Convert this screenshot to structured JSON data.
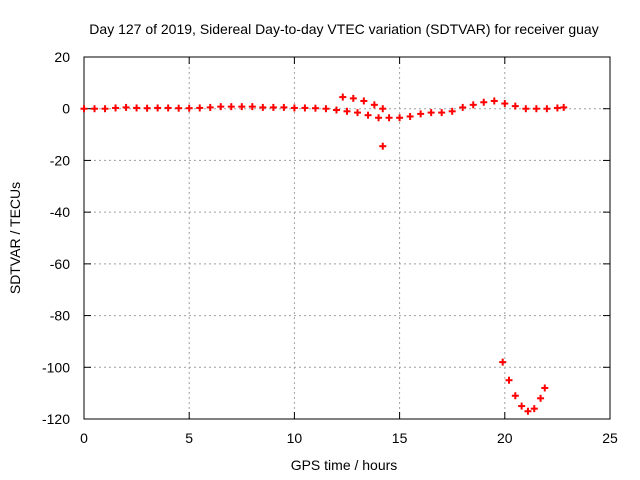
{
  "chart_data": {
    "type": "scatter",
    "title": "Day 127 of 2019, Sidereal Day-to-day VTEC variation (SDTVAR) for receiver guay",
    "xlabel": "GPS time / hours",
    "ylabel": "SDTVAR / TECUs",
    "xlim": [
      0,
      25
    ],
    "ylim": [
      -120,
      20
    ],
    "xticks": [
      0,
      5,
      10,
      15,
      20,
      25
    ],
    "yticks": [
      20,
      0,
      -20,
      -40,
      -60,
      -80,
      -100,
      -120
    ],
    "xtick_labels": [
      "0",
      "5",
      "10",
      "15",
      "20",
      "25"
    ],
    "ytick_labels": [
      "20",
      "0",
      "-20",
      "-40",
      "-60",
      "-80",
      "-100",
      "-120"
    ],
    "grid": true,
    "marker": "+",
    "color": "#ff0000",
    "series": [
      {
        "name": "SDTVAR",
        "points": [
          [
            0,
            0
          ],
          [
            0.5,
            0
          ],
          [
            1,
            0
          ],
          [
            1.5,
            0.3
          ],
          [
            2,
            0.5
          ],
          [
            2.5,
            0.3
          ],
          [
            3,
            0.2
          ],
          [
            3.5,
            0.3
          ],
          [
            4,
            0.3
          ],
          [
            4.5,
            0.2
          ],
          [
            5,
            0.2
          ],
          [
            5.5,
            0.3
          ],
          [
            6,
            0.5
          ],
          [
            6.5,
            0.8
          ],
          [
            7,
            0.8
          ],
          [
            7.5,
            0.8
          ],
          [
            8,
            0.8
          ],
          [
            8.5,
            0.5
          ],
          [
            9,
            0.5
          ],
          [
            9.5,
            0.5
          ],
          [
            10,
            0.3
          ],
          [
            10.5,
            0.3
          ],
          [
            11,
            0.2
          ],
          [
            11.5,
            0
          ],
          [
            12,
            -0.5
          ],
          [
            12.5,
            -1
          ],
          [
            13,
            -1.5
          ],
          [
            13.5,
            -2.5
          ],
          [
            14,
            -3.5
          ],
          [
            12.3,
            4.5
          ],
          [
            12.8,
            4
          ],
          [
            13.3,
            3
          ],
          [
            13.8,
            1.5
          ],
          [
            14.2,
            0
          ],
          [
            14.2,
            -14.5
          ],
          [
            14.5,
            -3.5
          ],
          [
            15,
            -3.5
          ],
          [
            15.5,
            -3
          ],
          [
            16,
            -2
          ],
          [
            16.5,
            -1.5
          ],
          [
            17,
            -1.5
          ],
          [
            17.5,
            -1
          ],
          [
            18,
            0.5
          ],
          [
            18.5,
            1.5
          ],
          [
            19,
            2.5
          ],
          [
            19.5,
            3
          ],
          [
            20,
            2
          ],
          [
            20.5,
            1
          ],
          [
            21,
            0
          ],
          [
            21.5,
            0
          ],
          [
            22,
            0
          ],
          [
            22.5,
            0.3
          ],
          [
            22.8,
            0.5
          ],
          [
            19.9,
            -98
          ],
          [
            20.2,
            -105
          ],
          [
            20.5,
            -111
          ],
          [
            20.8,
            -115
          ],
          [
            21.1,
            -117
          ],
          [
            21.4,
            -116
          ],
          [
            21.7,
            -112
          ],
          [
            21.9,
            -108
          ]
        ]
      }
    ]
  }
}
